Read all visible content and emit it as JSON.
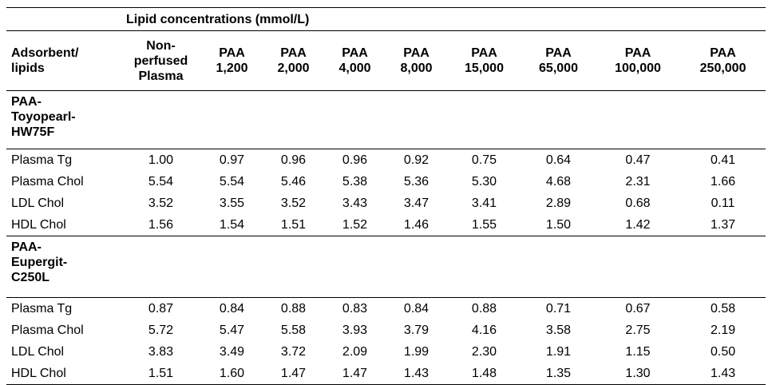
{
  "table": {
    "group_header": "Lipid concentrations (mmol/L)",
    "columns": [
      "Adsorbent/\nlipids",
      "Non-\nperfused\nPlasma",
      "PAA\n1,200",
      "PAA\n2,000",
      "PAA\n4,000",
      "PAA\n8,000",
      "PAA\n15,000",
      "PAA\n65,000",
      "PAA\n100,000",
      "PAA\n250,000"
    ],
    "sections": [
      {
        "title": "PAA-\nToyopearl-\nHW75F",
        "rows": [
          {
            "label": "Plasma Tg",
            "values": [
              "1.00",
              "0.97",
              "0.96",
              "0.96",
              "0.92",
              "0.75",
              "0.64",
              "0.47",
              "0.41"
            ]
          },
          {
            "label": "Plasma Chol",
            "values": [
              "5.54",
              "5.54",
              "5.46",
              "5.38",
              "5.36",
              "5.30",
              "4.68",
              "2.31",
              "1.66"
            ]
          },
          {
            "label": "LDL Chol",
            "values": [
              "3.52",
              "3.55",
              "3.52",
              "3.43",
              "3.47",
              "3.41",
              "2.89",
              "0.68",
              "0.11"
            ]
          },
          {
            "label": "HDL Chol",
            "values": [
              "1.56",
              "1.54",
              "1.51",
              "1.52",
              "1.46",
              "1.55",
              "1.50",
              "1.42",
              "1.37"
            ]
          }
        ]
      },
      {
        "title": "PAA-\nEupergit-\nC250L",
        "rows": [
          {
            "label": "Plasma Tg",
            "values": [
              "0.87",
              "0.84",
              "0.88",
              "0.83",
              "0.84",
              "0.88",
              "0.71",
              "0.67",
              "0.58"
            ]
          },
          {
            "label": "Plasma Chol",
            "values": [
              "5.72",
              "5.47",
              "5.58",
              "3.93",
              "3.79",
              "4.16",
              "3.58",
              "2.75",
              "2.19"
            ]
          },
          {
            "label": "LDL Chol",
            "values": [
              "3.83",
              "3.49",
              "3.72",
              "2.09",
              "1.99",
              "2.30",
              "1.91",
              "1.15",
              "0.50"
            ]
          },
          {
            "label": "HDL Chol",
            "values": [
              "1.51",
              "1.60",
              "1.47",
              "1.47",
              "1.43",
              "1.48",
              "1.35",
              "1.30",
              "1.43"
            ]
          }
        ]
      }
    ]
  }
}
